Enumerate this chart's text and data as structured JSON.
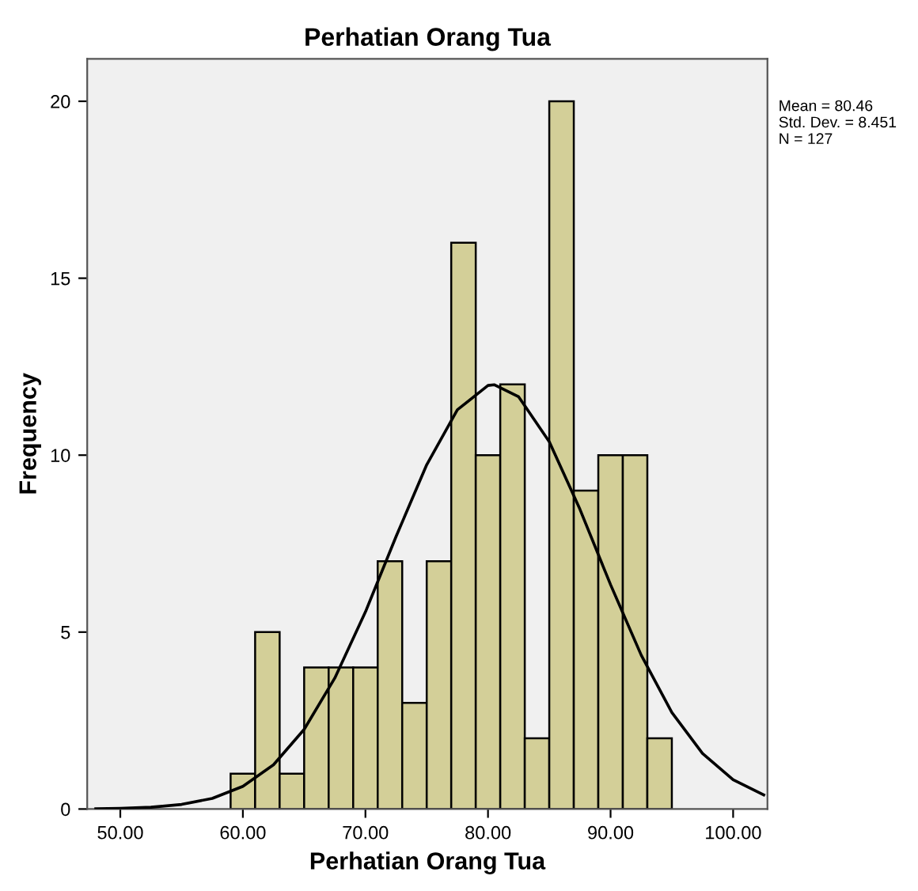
{
  "chart_data": {
    "type": "histogram",
    "title": "Perhatian Orang Tua",
    "xlabel": "Perhatian Orang Tua",
    "ylabel": "Frequency",
    "annotations": [
      "Mean = 80.46",
      "Std. Dev. = 8.451",
      "N = 127"
    ],
    "series": [
      {
        "color": "#d3cf98",
        "bins": [
          59,
          61,
          63,
          65,
          67,
          69,
          71,
          73,
          75,
          77,
          79,
          81,
          83,
          85,
          87,
          89,
          91,
          93,
          95
        ],
        "values": [
          1,
          5,
          1,
          4,
          4,
          4,
          7,
          3,
          7,
          16,
          10,
          12,
          2,
          20,
          9,
          10,
          10,
          2
        ]
      },
      {
        "type": "line",
        "color": "#000000",
        "x": [
          48,
          50,
          52.5,
          55,
          57.5,
          60,
          62.5,
          65,
          67.5,
          70,
          72.5,
          75,
          77.5,
          80,
          80.5,
          82.5,
          85,
          87.5,
          90,
          92.5,
          95,
          97.5,
          100,
          102.5
        ],
        "values": [
          0.01,
          0.02,
          0.05,
          0.13,
          0.3,
          0.64,
          1.25,
          2.25,
          3.7,
          5.57,
          7.7,
          9.73,
          11.28,
          11.97,
          11.99,
          11.65,
          10.38,
          8.47,
          6.34,
          4.35,
          2.73,
          1.57,
          0.83,
          0.4
        ]
      }
    ],
    "xlim": [
      47.3,
      102.8
    ],
    "ylim": [
      0,
      21.2
    ],
    "xticks": [
      {
        "value": 50,
        "label": "50.00"
      },
      {
        "value": 60,
        "label": "60.00"
      },
      {
        "value": 70,
        "label": "70.00"
      },
      {
        "value": 80,
        "label": "80.00"
      },
      {
        "value": 90,
        "label": "90.00"
      },
      {
        "value": 100,
        "label": "100.00"
      }
    ],
    "yticks": [
      0,
      5,
      10,
      15,
      20
    ],
    "grid": false,
    "legend": false,
    "marker": "none",
    "line_style": "solid"
  }
}
